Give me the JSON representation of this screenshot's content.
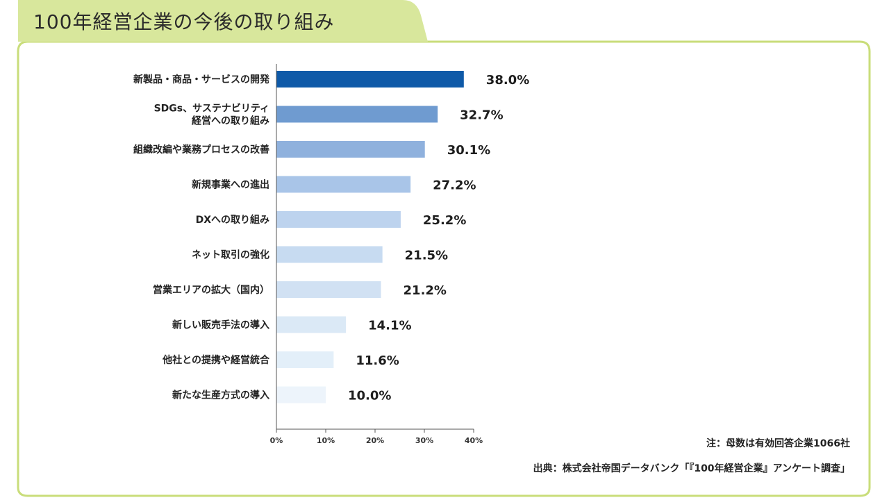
{
  "header": {
    "title": "100年経営企業の今後の取り組み"
  },
  "colors": {
    "frame": "#c9dd7a",
    "tab_fill": "#d8e79c",
    "axis": "#555555"
  },
  "chart_data": {
    "type": "bar",
    "orientation": "horizontal",
    "categories": [
      [
        "新製品・商品・サービスの開発"
      ],
      [
        "SDGs、サステナビリティ",
        "経営への取り組み"
      ],
      [
        "組織改編や業務プロセスの改善"
      ],
      [
        "新規事業への進出"
      ],
      [
        "DXへの取り組み"
      ],
      [
        "ネット取引の強化"
      ],
      [
        "営業エリアの拡大（国内）"
      ],
      [
        "新しい販売手法の導入"
      ],
      [
        "他社との提携や経営統合"
      ],
      [
        "新たな生産方式の導入"
      ]
    ],
    "values": [
      38.0,
      32.7,
      30.1,
      27.2,
      25.2,
      21.5,
      21.2,
      14.1,
      11.6,
      10.0
    ],
    "value_labels": [
      "38.0%",
      "32.7%",
      "30.1%",
      "27.2%",
      "25.2%",
      "21.5%",
      "21.2%",
      "14.1%",
      "11.6%",
      "10.0%"
    ],
    "bar_colors": [
      "#0f5aa8",
      "#6f9bd0",
      "#8fb1dd",
      "#a9c5e8",
      "#bdd3ee",
      "#c7dbf1",
      "#d1e1f3",
      "#dbe9f6",
      "#e3eff9",
      "#edf4fb"
    ],
    "xlim": [
      0,
      40
    ],
    "xticks": [
      "0%",
      "10%",
      "20%",
      "30%",
      "40%"
    ],
    "grid": false,
    "title": "100年経営企業の今後の取り組み"
  },
  "notes": {
    "note1": "注：母数は有効回答企業1066社",
    "source": "出典：株式会社帝国データバンク「『100年経営企業』アンケート調査」"
  }
}
